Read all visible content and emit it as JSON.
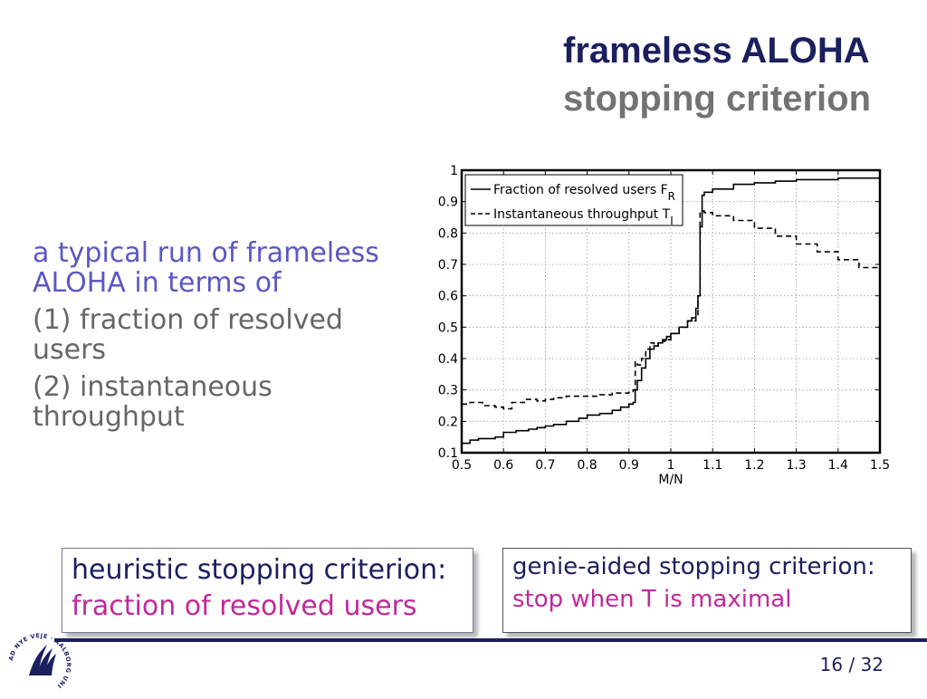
{
  "title": {
    "main": "frameless ALOHA",
    "sub": "stopping criterion"
  },
  "left_text": {
    "intro": "a typical run of frameless ALOHA in terms of",
    "item1": "(1) fraction of resolved users",
    "item2": "(2) instantaneous throughput"
  },
  "box_left": {
    "line1": "heuristic stopping criterion:",
    "line2": "fraction of resolved users"
  },
  "box_right": {
    "line1": "genie-aided stopping criterion:",
    "line2": "stop when T is maximal"
  },
  "logo": {
    "text": "AD NYE VEJE · AALBORG UNIVERSITET"
  },
  "page": {
    "current": "16",
    "sep": " / ",
    "total": "32"
  },
  "colors": {
    "title": "#1c1f5e",
    "subtitle": "#737373",
    "intro": "#5b57c4",
    "highlight": "#c0289a"
  },
  "chart_data": {
    "type": "line",
    "xlabel": "M/N",
    "ylabel": "",
    "xlim": [
      0.5,
      1.5
    ],
    "ylim": [
      0.1,
      1.0
    ],
    "xticks": [
      "0.5",
      "0.6",
      "0.7",
      "0.8",
      "0.9",
      "1",
      "1.1",
      "1.2",
      "1.3",
      "1.4",
      "1.5"
    ],
    "yticks": [
      "0.1",
      "0.2",
      "0.3",
      "0.4",
      "0.5",
      "0.6",
      "0.7",
      "0.8",
      "0.9",
      "1"
    ],
    "grid": true,
    "legend_position": "top-left",
    "series": [
      {
        "name": "Fraction of resolved users F",
        "name_sub": "R",
        "style": "solid",
        "x": [
          0.5,
          0.52,
          0.54,
          0.58,
          0.6,
          0.63,
          0.66,
          0.68,
          0.7,
          0.72,
          0.75,
          0.78,
          0.8,
          0.83,
          0.86,
          0.88,
          0.9,
          0.91,
          0.915,
          0.92,
          0.93,
          0.94,
          0.95,
          0.96,
          0.97,
          0.98,
          0.99,
          1.0,
          1.02,
          1.04,
          1.05,
          1.06,
          1.065,
          1.07,
          1.075,
          1.08,
          1.1,
          1.15,
          1.2,
          1.25,
          1.3,
          1.4,
          1.5
        ],
        "y": [
          0.13,
          0.14,
          0.145,
          0.15,
          0.165,
          0.17,
          0.175,
          0.18,
          0.185,
          0.19,
          0.2,
          0.21,
          0.22,
          0.225,
          0.235,
          0.245,
          0.255,
          0.26,
          0.3,
          0.33,
          0.37,
          0.4,
          0.43,
          0.44,
          0.45,
          0.46,
          0.47,
          0.48,
          0.5,
          0.52,
          0.53,
          0.56,
          0.6,
          0.82,
          0.92,
          0.93,
          0.94,
          0.955,
          0.96,
          0.965,
          0.97,
          0.975,
          0.975
        ]
      },
      {
        "name": "Instantaneous throughput T",
        "name_sub": "I",
        "style": "dashed",
        "x": [
          0.5,
          0.52,
          0.55,
          0.58,
          0.6,
          0.62,
          0.65,
          0.68,
          0.7,
          0.72,
          0.75,
          0.78,
          0.8,
          0.83,
          0.86,
          0.88,
          0.9,
          0.91,
          0.915,
          0.92,
          0.93,
          0.94,
          0.95,
          0.96,
          0.97,
          0.98,
          0.99,
          1.0,
          1.02,
          1.04,
          1.05,
          1.06,
          1.065,
          1.07,
          1.08,
          1.1,
          1.15,
          1.2,
          1.25,
          1.3,
          1.35,
          1.4,
          1.45,
          1.5
        ],
        "y": [
          0.255,
          0.26,
          0.25,
          0.245,
          0.24,
          0.26,
          0.27,
          0.265,
          0.27,
          0.275,
          0.28,
          0.28,
          0.28,
          0.285,
          0.29,
          0.29,
          0.295,
          0.3,
          0.39,
          0.38,
          0.4,
          0.43,
          0.45,
          0.44,
          0.45,
          0.455,
          0.46,
          0.48,
          0.5,
          0.52,
          0.52,
          0.54,
          0.6,
          0.87,
          0.865,
          0.855,
          0.84,
          0.815,
          0.79,
          0.765,
          0.74,
          0.715,
          0.69,
          0.66
        ]
      }
    ]
  }
}
